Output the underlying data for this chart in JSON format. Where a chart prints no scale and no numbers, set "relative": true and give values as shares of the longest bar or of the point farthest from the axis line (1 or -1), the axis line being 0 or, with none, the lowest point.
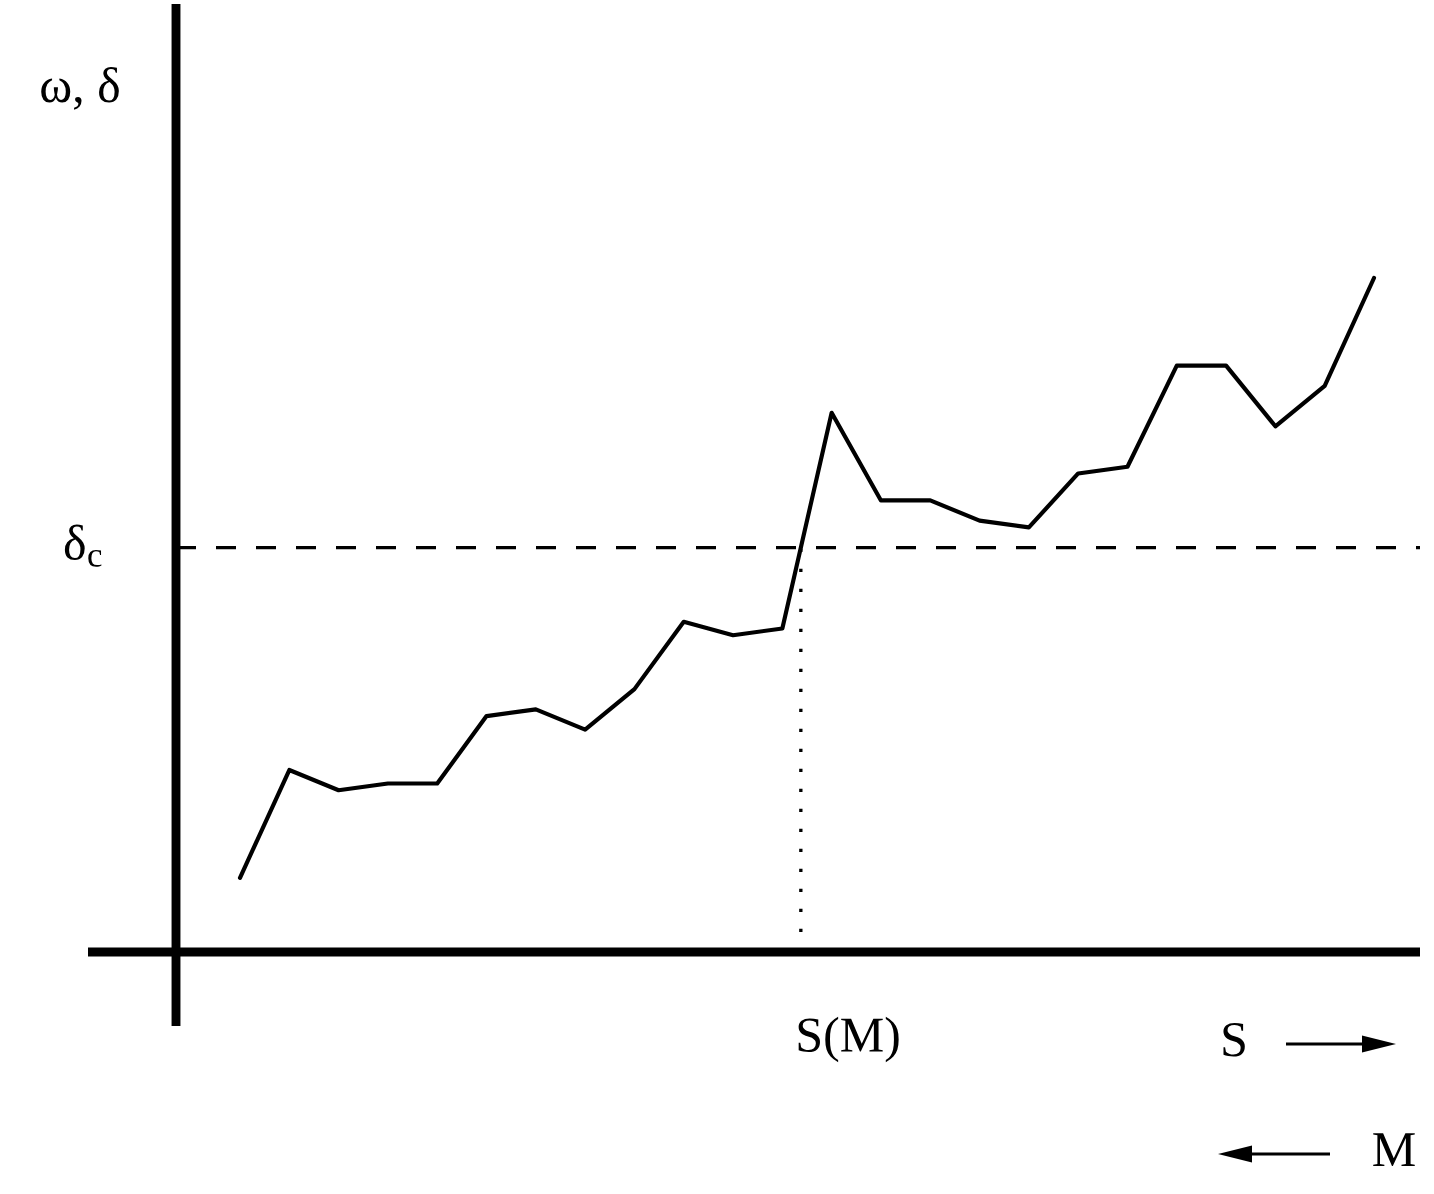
{
  "chart_data": {
    "type": "line",
    "relative": true,
    "ylabel": "ω, δ",
    "xlabel": "S",
    "annotations": [
      "M"
    ],
    "categories": [
      null,
      null,
      null,
      null,
      null,
      null,
      null,
      null,
      null,
      null,
      null,
      null,
      null,
      null,
      null,
      null,
      null,
      null,
      null,
      null,
      null,
      null,
      null,
      null
    ],
    "series": [
      {
        "color": "#000000",
        "values": [
          0.11,
          0.27,
          0.24,
          0.25,
          0.25,
          0.35,
          0.36,
          0.33,
          0.39,
          0.49,
          0.47,
          0.48,
          0.8,
          0.67,
          0.67,
          0.64,
          0.63,
          0.71,
          0.72,
          0.87,
          0.87,
          0.78,
          0.84,
          1.0
        ]
      }
    ],
    "ref_lines": [
      {
        "axis": "y",
        "value": 0.6,
        "label": "δ$_{c}$",
        "color": "#000000",
        "line_style": "dashed"
      },
      {
        "axis": "x",
        "value": "S(M)",
        "color": "#000000",
        "line_style": "dotted"
      }
    ],
    "marker": "none",
    "line_style": "solid",
    "grid": false
  }
}
